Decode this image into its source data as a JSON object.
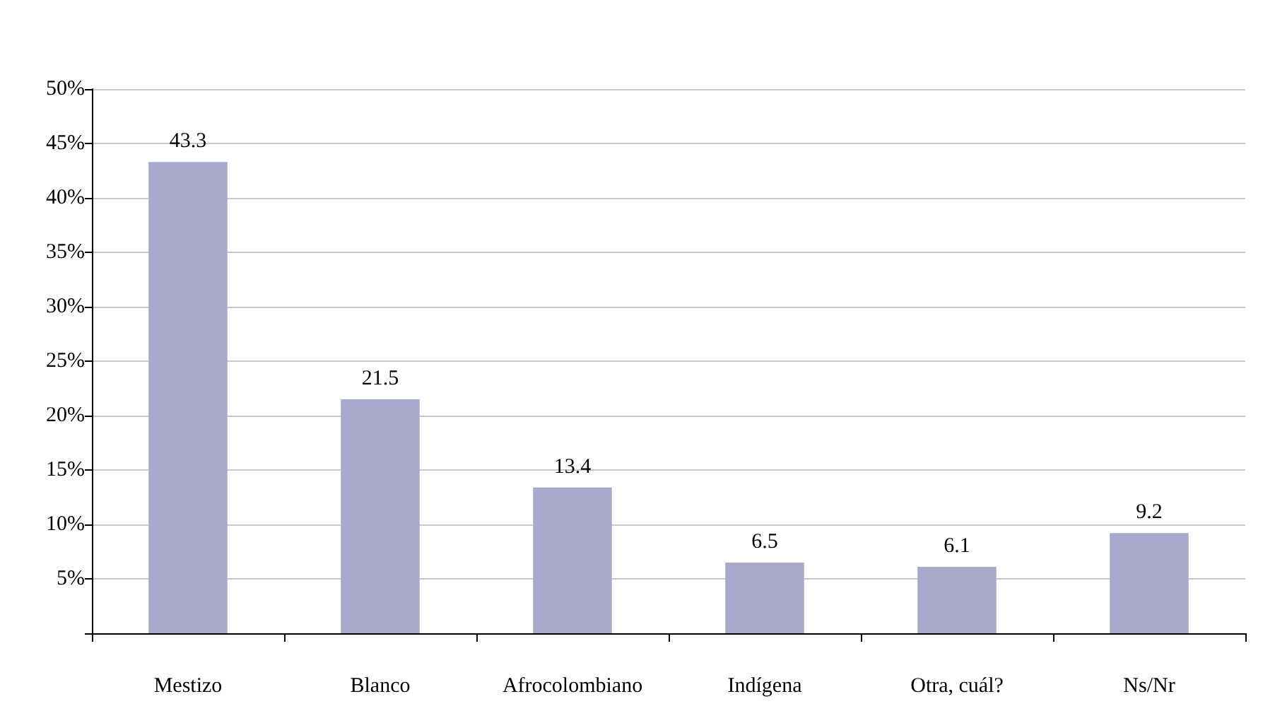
{
  "chart_data": {
    "type": "bar",
    "categories": [
      "Mestizo",
      "Blanco",
      "Afrocolombiano",
      "Indígena",
      "Otra, cuál?",
      "Ns/Nr"
    ],
    "values": [
      43.3,
      21.5,
      13.4,
      6.5,
      6.1,
      9.2
    ],
    "color": "#aaa8cc",
    "data_labels": true,
    "ylim": [
      0,
      50
    ],
    "yticks": [
      {
        "value": 0,
        "label": null
      },
      {
        "value": 5,
        "label": "5%"
      },
      {
        "value": 10,
        "label": "10%"
      },
      {
        "value": 15,
        "label": "15%"
      },
      {
        "value": 20,
        "label": "20%"
      },
      {
        "value": 25,
        "label": "25%"
      },
      {
        "value": 30,
        "label": "30%"
      },
      {
        "value": 35,
        "label": "35%"
      },
      {
        "value": 40,
        "label": "40%"
      },
      {
        "value": 45,
        "label": "45%"
      },
      {
        "value": 50,
        "label": "50%"
      }
    ],
    "grid": "y"
  }
}
